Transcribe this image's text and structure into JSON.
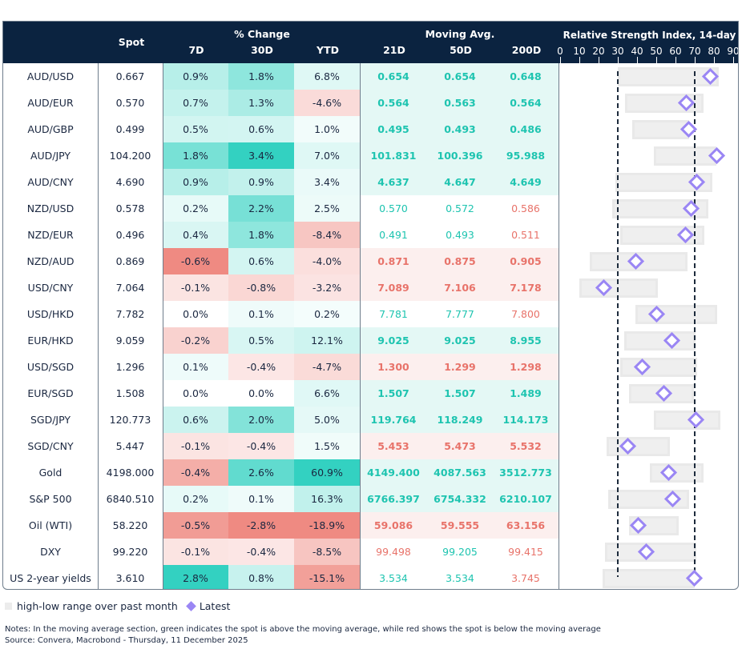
{
  "chart_data": {
    "type": "table",
    "headers": {
      "spot": "Spot",
      "pct_change": "% Change",
      "d7": "7D",
      "d30": "30D",
      "ytd": "YTD",
      "moving_avg": "Moving Avg.",
      "ma21": "21D",
      "ma50": "50D",
      "ma200": "200D",
      "rsi": "Relative Strength Index, 14-day"
    },
    "rsi_axis": {
      "ticks": [
        "0",
        "10",
        "20",
        "30",
        "40",
        "50",
        "60",
        "70",
        "80",
        "90"
      ],
      "range": [
        0,
        90
      ],
      "reference_lines": [
        30,
        70
      ]
    },
    "colors": {
      "positive": "#33d1c1",
      "negative": "#ef8a82",
      "ma_above": "#1ec4b0",
      "ma_below": "#e8736a",
      "marker": "#9a86f4",
      "range_bar": "#efefef",
      "header_bg": "#0b2340"
    },
    "rows": [
      {
        "name": "AUD/USD",
        "spot": "0.667",
        "d7": "0.9%",
        "d30": "1.8%",
        "ytd": "6.8%",
        "ma": [
          "0.654",
          "0.654",
          "0.648"
        ],
        "ma_sig": [
          "g",
          "g",
          "g"
        ],
        "rsi_low": 30,
        "rsi_high": 82.4,
        "rsi": 78.3
      },
      {
        "name": "AUD/EUR",
        "spot": "0.570",
        "d7": "0.7%",
        "d30": "1.3%",
        "ytd": "-4.6%",
        "ma": [
          "0.564",
          "0.563",
          "0.564"
        ],
        "ma_sig": [
          "g",
          "g",
          "g"
        ],
        "rsi_low": 33.8,
        "rsi_high": 74.4,
        "rsi": 65.8
      },
      {
        "name": "AUD/GBP",
        "spot": "0.499",
        "d7": "0.5%",
        "d30": "0.6%",
        "ytd": "1.0%",
        "ma": [
          "0.495",
          "0.493",
          "0.486"
        ],
        "ma_sig": [
          "g",
          "g",
          "g"
        ],
        "rsi_low": 37.5,
        "rsi_high": 67.1,
        "rsi": 66.8
      },
      {
        "name": "AUD/JPY",
        "spot": "104.200",
        "d7": "1.8%",
        "d30": "3.4%",
        "ytd": "7.0%",
        "ma": [
          "101.831",
          "100.396",
          "95.988"
        ],
        "ma_sig": [
          "g",
          "g",
          "g"
        ],
        "rsi_low": 48.9,
        "rsi_high": 81.3,
        "rsi": 81.3
      },
      {
        "name": "AUD/CNY",
        "spot": "4.690",
        "d7": "0.9%",
        "d30": "0.9%",
        "ytd": "3.4%",
        "ma": [
          "4.637",
          "4.647",
          "4.649"
        ],
        "ma_sig": [
          "g",
          "g",
          "g"
        ],
        "rsi_low": 28.9,
        "rsi_high": 79,
        "rsi": 71
      },
      {
        "name": "NZD/USD",
        "spot": "0.578",
        "d7": "0.2%",
        "d30": "2.2%",
        "ytd": "2.5%",
        "ma": [
          "0.570",
          "0.572",
          "0.586"
        ],
        "ma_sig": [
          "g",
          "g",
          "r"
        ],
        "rsi_low": 27.2,
        "rsi_high": 77.1,
        "rsi": 68
      },
      {
        "name": "NZD/EUR",
        "spot": "0.496",
        "d7": "0.4%",
        "d30": "1.8%",
        "ytd": "-8.4%",
        "ma": [
          "0.491",
          "0.493",
          "0.511"
        ],
        "ma_sig": [
          "g",
          "g",
          "r"
        ],
        "rsi_low": 31.4,
        "rsi_high": 75,
        "rsi": 65.3
      },
      {
        "name": "NZD/AUD",
        "spot": "0.869",
        "d7": "-0.6%",
        "d30": "0.6%",
        "ytd": "-4.0%",
        "ma": [
          "0.871",
          "0.875",
          "0.905"
        ],
        "ma_sig": [
          "r",
          "r",
          "r"
        ],
        "rsi_low": 15.6,
        "rsi_high": 66.3,
        "rsi": 39.2
      },
      {
        "name": "USD/CNY",
        "spot": "7.064",
        "d7": "-0.1%",
        "d30": "-0.8%",
        "ytd": "-3.2%",
        "ma": [
          "7.089",
          "7.106",
          "7.178"
        ],
        "ma_sig": [
          "r",
          "r",
          "r"
        ],
        "rsi_low": 9.9,
        "rsi_high": 50.7,
        "rsi": 22.9
      },
      {
        "name": "USD/HKD",
        "spot": "7.782",
        "d7": "0.0%",
        "d30": "0.1%",
        "ytd": "0.2%",
        "ma": [
          "7.781",
          "7.777",
          "7.800"
        ],
        "ma_sig": [
          "g",
          "g",
          "r"
        ],
        "rsi_low": 39.3,
        "rsi_high": 81.5,
        "rsi": 50
      },
      {
        "name": "EUR/HKD",
        "spot": "9.059",
        "d7": "-0.2%",
        "d30": "0.5%",
        "ytd": "12.1%",
        "ma": [
          "9.025",
          "9.025",
          "8.955"
        ],
        "ma_sig": [
          "g",
          "g",
          "g"
        ],
        "rsi_low": 33.5,
        "rsi_high": 70.6,
        "rsi": 58
      },
      {
        "name": "USD/SGD",
        "spot": "1.296",
        "d7": "0.1%",
        "d30": "-0.4%",
        "ytd": "-4.7%",
        "ma": [
          "1.300",
          "1.299",
          "1.298"
        ],
        "ma_sig": [
          "r",
          "r",
          "r"
        ],
        "rsi_low": 31.1,
        "rsi_high": 71.2,
        "rsi": 42.5
      },
      {
        "name": "EUR/SGD",
        "spot": "1.508",
        "d7": "0.0%",
        "d30": "0.0%",
        "ytd": "6.6%",
        "ma": [
          "1.507",
          "1.507",
          "1.489"
        ],
        "ma_sig": [
          "g",
          "g",
          "g"
        ],
        "rsi_low": 35.7,
        "rsi_high": 69.6,
        "rsi": 54
      },
      {
        "name": "SGD/JPY",
        "spot": "120.773",
        "d7": "0.6%",
        "d30": "2.0%",
        "ytd": "5.0%",
        "ma": [
          "119.764",
          "118.249",
          "114.173"
        ],
        "ma_sig": [
          "g",
          "g",
          "g"
        ],
        "rsi_low": 48.9,
        "rsi_high": 83.5,
        "rsi": 70.7
      },
      {
        "name": "SGD/CNY",
        "spot": "5.447",
        "d7": "-0.1%",
        "d30": "-0.4%",
        "ytd": "1.5%",
        "ma": [
          "5.453",
          "5.473",
          "5.532"
        ],
        "ma_sig": [
          "r",
          "r",
          "r"
        ],
        "rsi_low": 24.2,
        "rsi_high": 57,
        "rsi": 35.3
      },
      {
        "name": "Gold",
        "spot": "4198.000",
        "d7": "-0.4%",
        "d30": "2.6%",
        "ytd": "60.9%",
        "ma": [
          "4149.400",
          "4087.563",
          "3512.773"
        ],
        "ma_sig": [
          "g",
          "g",
          "g"
        ],
        "rsi_low": 46.5,
        "rsi_high": 74.6,
        "rsi": 56.3
      },
      {
        "name": "S&P 500",
        "spot": "6840.510",
        "d7": "0.2%",
        "d30": "0.1%",
        "ytd": "16.3%",
        "ma": [
          "6766.397",
          "6754.332",
          "6210.107"
        ],
        "ma_sig": [
          "g",
          "g",
          "g"
        ],
        "rsi_low": 25,
        "rsi_high": 66.9,
        "rsi": 58.6
      },
      {
        "name": "Oil (WTI)",
        "spot": "58.220",
        "d7": "-0.5%",
        "d30": "-2.8%",
        "ytd": "-18.9%",
        "ma": [
          "59.086",
          "59.555",
          "63.156"
        ],
        "ma_sig": [
          "r",
          "r",
          "r"
        ],
        "rsi_low": 35.8,
        "rsi_high": 61.8,
        "rsi": 40.8
      },
      {
        "name": "DXY",
        "spot": "99.220",
        "d7": "-0.1%",
        "d30": "-0.4%",
        "ytd": "-8.5%",
        "ma": [
          "99.498",
          "99.205",
          "99.415"
        ],
        "ma_sig": [
          "r",
          "g",
          "r"
        ],
        "rsi_low": 23.5,
        "rsi_high": 70.7,
        "rsi": 44.9
      },
      {
        "name": "US 2-year yields",
        "spot": "3.610",
        "d7": "2.8%",
        "d30": "0.8%",
        "ytd": "-15.1%",
        "ma": [
          "3.534",
          "3.534",
          "3.745"
        ],
        "ma_sig": [
          "g",
          "g",
          "r"
        ],
        "rsi_low": 22.2,
        "rsi_high": 69.9,
        "rsi": 69.9
      }
    ],
    "legend": {
      "range": "high-low range over past month",
      "latest": "Latest"
    }
  },
  "notes": "Notes: In the moving average section, green indicates the spot is above the moving average, while red shows the spot is below the moving average",
  "source": "Source: Convera, Macrobond - Thursday, 11 December 2025"
}
